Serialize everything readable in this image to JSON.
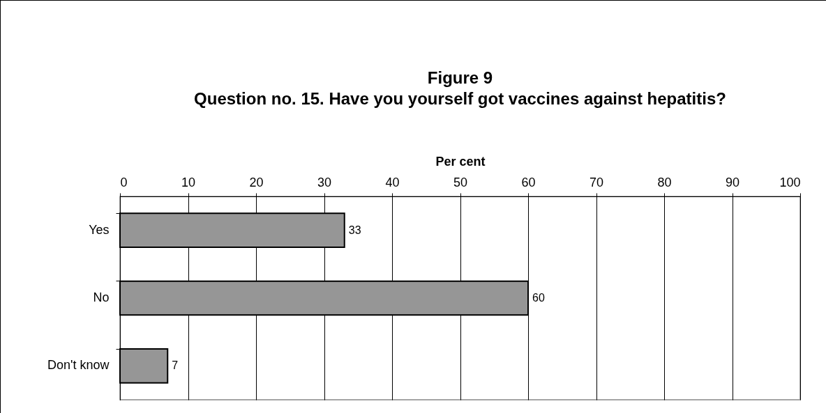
{
  "chart_data": {
    "type": "bar",
    "orientation": "horizontal",
    "title": "Figure 9",
    "subtitle": "Question no. 15. Have you yourself got vaccines against hepatitis?",
    "xlabel": "Per cent",
    "categories": [
      "Yes",
      "No",
      "Don't know"
    ],
    "values": [
      33,
      60,
      7
    ],
    "color": "#969696",
    "xlim": [
      0,
      100
    ],
    "xticks": [
      0,
      10,
      20,
      30,
      40,
      50,
      60,
      70,
      80,
      90,
      100
    ],
    "grid": "x",
    "data_labels": true
  }
}
